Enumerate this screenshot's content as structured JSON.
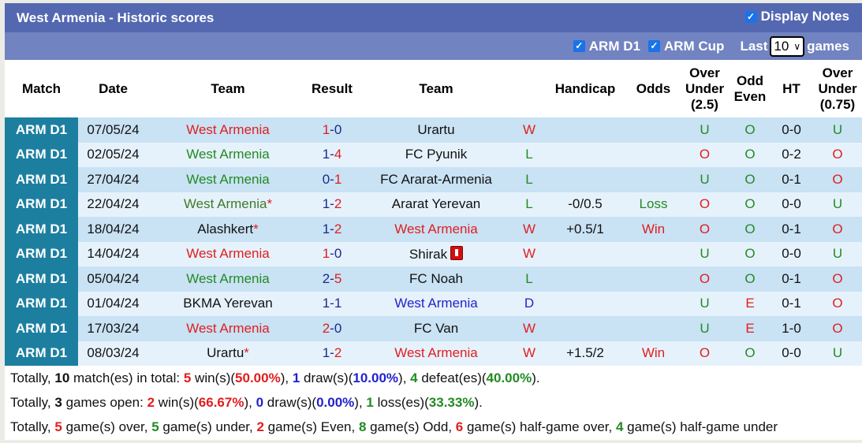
{
  "header": {
    "title": "West Armenia - Historic scores",
    "display_notes_label": "Display Notes",
    "display_notes_checked": true
  },
  "filters": {
    "arm_d1_label": "ARM D1",
    "arm_cup_label": "ARM Cup",
    "last_label": "Last",
    "games_count": "10",
    "games_label": "games"
  },
  "columns": [
    "Match",
    "Date",
    "Team",
    "Result",
    "Team",
    "",
    "Handicap",
    "Odds",
    "Over Under (2.5)",
    "Odd Even",
    "HT",
    "Over Under (0.75)"
  ],
  "column_lines": {
    "ou25": [
      "Over",
      "Under",
      "(2.5)"
    ],
    "oddeven": [
      "Odd",
      "Even"
    ],
    "ou075": [
      "Over",
      "Under",
      "(0.75)"
    ]
  },
  "rows": [
    {
      "league": "ARM D1",
      "date": "07/05/24",
      "home": "West Armenia",
      "home_color": "red",
      "home_star": false,
      "score_h": "1",
      "score_a": "0",
      "sh_color": "red",
      "sa_color": "navy",
      "away": "Urartu",
      "away_color": "black",
      "away_star": false,
      "away_card": false,
      "wl": "W",
      "wl_color": "red",
      "handicap": "",
      "odds": "",
      "odds_color": "",
      "ou": "U",
      "ou_color": "green",
      "oe": "O",
      "oe_color": "green",
      "ht": "0-0",
      "ou2": "U",
      "ou2_color": "green"
    },
    {
      "league": "ARM D1",
      "date": "02/05/24",
      "home": "West Armenia",
      "home_color": "green",
      "home_star": false,
      "score_h": "1",
      "score_a": "4",
      "sh_color": "navy",
      "sa_color": "red",
      "away": "FC Pyunik",
      "away_color": "black",
      "away_star": false,
      "away_card": false,
      "wl": "L",
      "wl_color": "green",
      "handicap": "",
      "odds": "",
      "odds_color": "",
      "ou": "O",
      "ou_color": "red",
      "oe": "O",
      "oe_color": "green",
      "ht": "0-2",
      "ou2": "O",
      "ou2_color": "red"
    },
    {
      "league": "ARM D1",
      "date": "27/04/24",
      "home": "West Armenia",
      "home_color": "green",
      "home_star": false,
      "score_h": "0",
      "score_a": "1",
      "sh_color": "navy",
      "sa_color": "red",
      "away": "FC Ararat-Armenia",
      "away_color": "black",
      "away_star": false,
      "away_card": false,
      "wl": "L",
      "wl_color": "green",
      "handicap": "",
      "odds": "",
      "odds_color": "",
      "ou": "U",
      "ou_color": "green",
      "oe": "O",
      "oe_color": "green",
      "ht": "0-1",
      "ou2": "O",
      "ou2_color": "red"
    },
    {
      "league": "ARM D1",
      "date": "22/04/24",
      "home": "West Armenia",
      "home_color": "olive",
      "home_star": true,
      "score_h": "1",
      "score_a": "2",
      "sh_color": "navy",
      "sa_color": "red",
      "away": "Ararat Yerevan",
      "away_color": "black",
      "away_star": false,
      "away_card": false,
      "wl": "L",
      "wl_color": "green",
      "handicap": "-0/0.5",
      "odds": "Loss",
      "odds_color": "green",
      "ou": "O",
      "ou_color": "red",
      "oe": "O",
      "oe_color": "green",
      "ht": "0-0",
      "ou2": "U",
      "ou2_color": "green"
    },
    {
      "league": "ARM D1",
      "date": "18/04/24",
      "home": "Alashkert",
      "home_color": "black",
      "home_star": true,
      "score_h": "1",
      "score_a": "2",
      "sh_color": "navy",
      "sa_color": "red",
      "away": "West Armenia",
      "away_color": "red",
      "away_star": false,
      "away_card": false,
      "wl": "W",
      "wl_color": "red",
      "handicap": "+0.5/1",
      "odds": "Win",
      "odds_color": "red",
      "ou": "O",
      "ou_color": "red",
      "oe": "O",
      "oe_color": "green",
      "ht": "0-1",
      "ou2": "O",
      "ou2_color": "red"
    },
    {
      "league": "ARM D1",
      "date": "14/04/24",
      "home": "West Armenia",
      "home_color": "red",
      "home_star": false,
      "score_h": "1",
      "score_a": "0",
      "sh_color": "red",
      "sa_color": "navy",
      "away": "Shirak",
      "away_color": "black",
      "away_star": false,
      "away_card": true,
      "wl": "W",
      "wl_color": "red",
      "handicap": "",
      "odds": "",
      "odds_color": "",
      "ou": "U",
      "ou_color": "green",
      "oe": "O",
      "oe_color": "green",
      "ht": "0-0",
      "ou2": "U",
      "ou2_color": "green"
    },
    {
      "league": "ARM D1",
      "date": "05/04/24",
      "home": "West Armenia",
      "home_color": "green",
      "home_star": false,
      "score_h": "2",
      "score_a": "5",
      "sh_color": "navy",
      "sa_color": "red",
      "away": "FC Noah",
      "away_color": "black",
      "away_star": false,
      "away_card": false,
      "wl": "L",
      "wl_color": "green",
      "handicap": "",
      "odds": "",
      "odds_color": "",
      "ou": "O",
      "ou_color": "red",
      "oe": "O",
      "oe_color": "green",
      "ht": "0-1",
      "ou2": "O",
      "ou2_color": "red"
    },
    {
      "league": "ARM D1",
      "date": "01/04/24",
      "home": "BKMA Yerevan",
      "home_color": "black",
      "home_star": false,
      "score_h": "1",
      "score_a": "1",
      "sh_color": "navy",
      "sa_color": "navy",
      "away": "West Armenia",
      "away_color": "blue",
      "away_star": false,
      "away_card": false,
      "wl": "D",
      "wl_color": "blue",
      "handicap": "",
      "odds": "",
      "odds_color": "",
      "ou": "U",
      "ou_color": "green",
      "oe": "E",
      "oe_color": "red",
      "ht": "0-1",
      "ou2": "O",
      "ou2_color": "red"
    },
    {
      "league": "ARM D1",
      "date": "17/03/24",
      "home": "West Armenia",
      "home_color": "red",
      "home_star": false,
      "score_h": "2",
      "score_a": "0",
      "sh_color": "red",
      "sa_color": "navy",
      "away": "FC Van",
      "away_color": "black",
      "away_star": false,
      "away_card": false,
      "wl": "W",
      "wl_color": "red",
      "handicap": "",
      "odds": "",
      "odds_color": "",
      "ou": "U",
      "ou_color": "green",
      "oe": "E",
      "oe_color": "red",
      "ht": "1-0",
      "ou2": "O",
      "ou2_color": "red"
    },
    {
      "league": "ARM D1",
      "date": "08/03/24",
      "home": "Urartu",
      "home_color": "black",
      "home_star": true,
      "score_h": "1",
      "score_a": "2",
      "sh_color": "navy",
      "sa_color": "red",
      "away": "West Armenia",
      "away_color": "red",
      "away_star": false,
      "away_card": false,
      "wl": "W",
      "wl_color": "red",
      "handicap": "+1.5/2",
      "odds": "Win",
      "odds_color": "red",
      "ou": "O",
      "ou_color": "red",
      "oe": "O",
      "oe_color": "green",
      "ht": "0-0",
      "ou2": "U",
      "ou2_color": "green"
    }
  ],
  "summary": {
    "line1": [
      {
        "t": "Totally, ",
        "c": ""
      },
      {
        "t": "10",
        "c": "b"
      },
      {
        "t": " match(es) in total: ",
        "c": ""
      },
      {
        "t": "5",
        "c": "red"
      },
      {
        "t": " win(s)(",
        "c": ""
      },
      {
        "t": "50.00%",
        "c": "red"
      },
      {
        "t": "), ",
        "c": ""
      },
      {
        "t": "1",
        "c": "blue"
      },
      {
        "t": " draw(s)(",
        "c": ""
      },
      {
        "t": "10.00%",
        "c": "blue"
      },
      {
        "t": "), ",
        "c": ""
      },
      {
        "t": "4",
        "c": "green"
      },
      {
        "t": " defeat(es)(",
        "c": ""
      },
      {
        "t": "40.00%",
        "c": "green"
      },
      {
        "t": ").",
        "c": ""
      }
    ],
    "line2": [
      {
        "t": "Totally, ",
        "c": ""
      },
      {
        "t": "3",
        "c": "b"
      },
      {
        "t": " games open: ",
        "c": ""
      },
      {
        "t": "2",
        "c": "red"
      },
      {
        "t": " win(s)(",
        "c": ""
      },
      {
        "t": "66.67%",
        "c": "red"
      },
      {
        "t": "), ",
        "c": ""
      },
      {
        "t": "0",
        "c": "blue"
      },
      {
        "t": " draw(s)(",
        "c": ""
      },
      {
        "t": "0.00%",
        "c": "blue"
      },
      {
        "t": "), ",
        "c": ""
      },
      {
        "t": "1",
        "c": "green"
      },
      {
        "t": " loss(es)(",
        "c": ""
      },
      {
        "t": "33.33%",
        "c": "green"
      },
      {
        "t": ").",
        "c": ""
      }
    ],
    "line3": [
      {
        "t": "Totally, ",
        "c": ""
      },
      {
        "t": "5",
        "c": "red"
      },
      {
        "t": " game(s) over, ",
        "c": ""
      },
      {
        "t": "5",
        "c": "green"
      },
      {
        "t": " game(s) under, ",
        "c": ""
      },
      {
        "t": "2",
        "c": "red"
      },
      {
        "t": " game(s) Even, ",
        "c": ""
      },
      {
        "t": "8",
        "c": "green"
      },
      {
        "t": " game(s) Odd, ",
        "c": ""
      },
      {
        "t": "6",
        "c": "red"
      },
      {
        "t": " game(s) half-game over, ",
        "c": ""
      },
      {
        "t": "4",
        "c": "green"
      },
      {
        "t": " game(s) half-game under",
        "c": ""
      }
    ]
  }
}
